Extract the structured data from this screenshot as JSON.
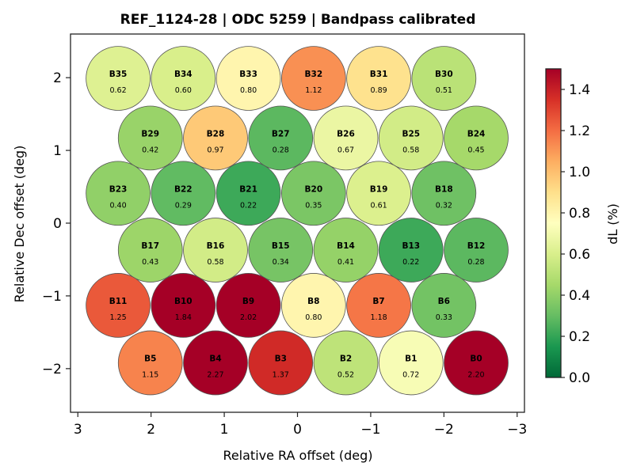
{
  "chart_data": {
    "type": "scatter",
    "title": "REF_1124-28  |  ODC 5259  |  Bandpass calibrated",
    "xlabel": "Relative RA offset (deg)",
    "ylabel": "Relative Dec offset (deg)",
    "xlim": [
      3.1,
      -3.1
    ],
    "ylim": [
      -2.6,
      2.6
    ],
    "x_inverted": true,
    "xticks": [
      3,
      2,
      1,
      0,
      -1,
      -2,
      -3
    ],
    "xtick_labels": [
      "3",
      "2",
      "1",
      "0",
      "−1",
      "−2",
      "−3"
    ],
    "yticks": [
      2,
      1,
      0,
      -1,
      -2
    ],
    "ytick_labels": [
      "2",
      "1",
      "0",
      "−1",
      "−2"
    ],
    "grid": false,
    "marker": "circle",
    "beam_radius_deg": 0.44,
    "colorbar": {
      "label": "dL  (%)",
      "cmap": "RdYlGn_r",
      "range": [
        0.0,
        1.5
      ],
      "ticks": [
        0.0,
        0.2,
        0.4,
        0.6,
        0.8,
        1.0,
        1.2,
        1.4
      ],
      "tick_labels": [
        "0.0",
        "0.2",
        "0.4",
        "0.6",
        "0.8",
        "1.0",
        "1.2",
        "1.4"
      ],
      "placement": "right"
    },
    "points": [
      {
        "name": "B35",
        "ra": 2.45,
        "dec": 1.99,
        "value": 0.62,
        "label": "0.62"
      },
      {
        "name": "B34",
        "ra": 1.56,
        "dec": 1.99,
        "value": 0.6,
        "label": "0.60"
      },
      {
        "name": "B33",
        "ra": 0.67,
        "dec": 1.99,
        "value": 0.8,
        "label": "0.80"
      },
      {
        "name": "B32",
        "ra": -0.22,
        "dec": 1.99,
        "value": 1.12,
        "label": "1.12"
      },
      {
        "name": "B31",
        "ra": -1.11,
        "dec": 1.99,
        "value": 0.89,
        "label": "0.89"
      },
      {
        "name": "B30",
        "ra": -2.0,
        "dec": 1.99,
        "value": 0.51,
        "label": "0.51"
      },
      {
        "name": "B29",
        "ra": 2.01,
        "dec": 1.17,
        "value": 0.42,
        "label": "0.42"
      },
      {
        "name": "B28",
        "ra": 1.12,
        "dec": 1.17,
        "value": 0.97,
        "label": "0.97"
      },
      {
        "name": "B27",
        "ra": 0.23,
        "dec": 1.17,
        "value": 0.28,
        "label": "0.28"
      },
      {
        "name": "B26",
        "ra": -0.66,
        "dec": 1.17,
        "value": 0.67,
        "label": "0.67"
      },
      {
        "name": "B25",
        "ra": -1.55,
        "dec": 1.17,
        "value": 0.58,
        "label": "0.58"
      },
      {
        "name": "B24",
        "ra": -2.44,
        "dec": 1.17,
        "value": 0.45,
        "label": "0.45"
      },
      {
        "name": "B23",
        "ra": 2.45,
        "dec": 0.41,
        "value": 0.4,
        "label": "0.40"
      },
      {
        "name": "B22",
        "ra": 1.56,
        "dec": 0.41,
        "value": 0.29,
        "label": "0.29"
      },
      {
        "name": "B21",
        "ra": 0.67,
        "dec": 0.41,
        "value": 0.22,
        "label": "0.22"
      },
      {
        "name": "B20",
        "ra": -0.22,
        "dec": 0.41,
        "value": 0.35,
        "label": "0.35"
      },
      {
        "name": "B19",
        "ra": -1.11,
        "dec": 0.41,
        "value": 0.61,
        "label": "0.61"
      },
      {
        "name": "B18",
        "ra": -2.0,
        "dec": 0.41,
        "value": 0.32,
        "label": "0.32"
      },
      {
        "name": "B17",
        "ra": 2.01,
        "dec": -0.37,
        "value": 0.43,
        "label": "0.43"
      },
      {
        "name": "B16",
        "ra": 1.12,
        "dec": -0.37,
        "value": 0.58,
        "label": "0.58"
      },
      {
        "name": "B15",
        "ra": 0.23,
        "dec": -0.37,
        "value": 0.34,
        "label": "0.34"
      },
      {
        "name": "B14",
        "ra": -0.66,
        "dec": -0.37,
        "value": 0.41,
        "label": "0.41"
      },
      {
        "name": "B13",
        "ra": -1.55,
        "dec": -0.37,
        "value": 0.22,
        "label": "0.22"
      },
      {
        "name": "B12",
        "ra": -2.44,
        "dec": -0.37,
        "value": 0.28,
        "label": "0.28"
      },
      {
        "name": "B11",
        "ra": 2.45,
        "dec": -1.13,
        "value": 1.25,
        "label": "1.25"
      },
      {
        "name": "B10",
        "ra": 1.56,
        "dec": -1.13,
        "value": 1.84,
        "label": "1.84"
      },
      {
        "name": "B9",
        "ra": 0.67,
        "dec": -1.13,
        "value": 2.02,
        "label": "2.02"
      },
      {
        "name": "B8",
        "ra": -0.22,
        "dec": -1.13,
        "value": 0.8,
        "label": "0.80"
      },
      {
        "name": "B7",
        "ra": -1.11,
        "dec": -1.13,
        "value": 1.18,
        "label": "1.18"
      },
      {
        "name": "B6",
        "ra": -2.0,
        "dec": -1.13,
        "value": 0.33,
        "label": "0.33"
      },
      {
        "name": "B5",
        "ra": 2.01,
        "dec": -1.92,
        "value": 1.15,
        "label": "1.15"
      },
      {
        "name": "B4",
        "ra": 1.12,
        "dec": -1.92,
        "value": 2.27,
        "label": "2.27"
      },
      {
        "name": "B3",
        "ra": 0.23,
        "dec": -1.92,
        "value": 1.37,
        "label": "1.37"
      },
      {
        "name": "B2",
        "ra": -0.66,
        "dec": -1.92,
        "value": 0.52,
        "label": "0.52"
      },
      {
        "name": "B1",
        "ra": -1.55,
        "dec": -1.92,
        "value": 0.72,
        "label": "0.72"
      },
      {
        "name": "B0",
        "ra": -2.44,
        "dec": -1.92,
        "value": 2.2,
        "label": "2.20"
      }
    ]
  },
  "colors": {
    "frame": "#222222",
    "circle_edge": "#555555",
    "cmap_stops": [
      "#006837",
      "#1a9850",
      "#66bd63",
      "#a6d96a",
      "#d9ef8b",
      "#ffffbf",
      "#fee08b",
      "#fdae61",
      "#f46d43",
      "#d73027",
      "#a50026"
    ]
  }
}
